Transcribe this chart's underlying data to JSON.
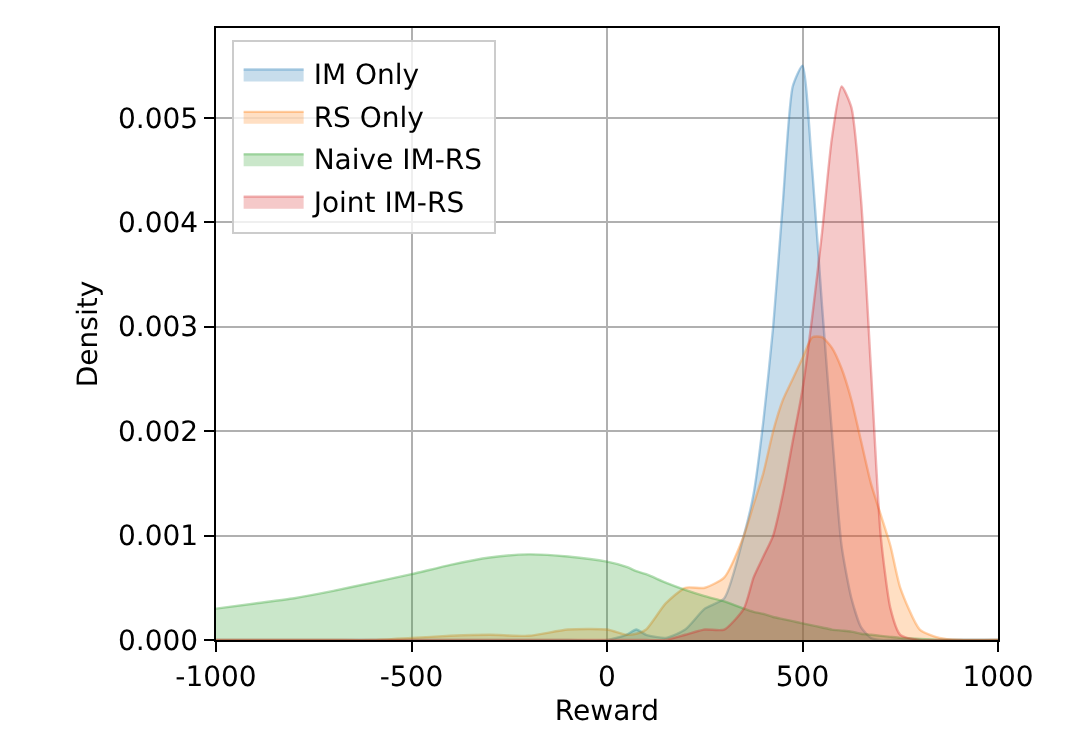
{
  "chart_data": {
    "type": "area",
    "xlabel": "Reward",
    "ylabel": "Density",
    "x": [
      -1000,
      -900,
      -800,
      -700,
      -600,
      -500,
      -400,
      -300,
      -200,
      -100,
      0,
      50,
      75,
      100,
      150,
      200,
      250,
      300,
      350,
      375,
      400,
      425,
      450,
      475,
      500,
      525,
      550,
      575,
      600,
      625,
      650,
      675,
      700,
      725,
      750,
      800,
      850,
      900,
      1000
    ],
    "series": [
      {
        "name": "IM Only",
        "color": "#1f77b4",
        "values": [
          0,
          0,
          0,
          0,
          0,
          0,
          0,
          0,
          0,
          0,
          0,
          5e-05,
          0.0001,
          5e-05,
          2e-05,
          0.0001,
          0.0003,
          0.0004,
          0.001,
          0.0014,
          0.0021,
          0.003,
          0.0042,
          0.0053,
          0.0055,
          0.0045,
          0.0032,
          0.002,
          0.0009,
          0.0004,
          0.00012,
          2e-05,
          0,
          0,
          0,
          0,
          0,
          0,
          0
        ]
      },
      {
        "name": "RS Only",
        "color": "#ff7f0e",
        "values": [
          0,
          0,
          0,
          0,
          0,
          2e-05,
          4e-05,
          5e-05,
          4e-05,
          0.0001,
          0.0001,
          5e-05,
          6e-05,
          0.0001,
          0.00035,
          0.0005,
          0.0005,
          0.0006,
          0.001,
          0.0013,
          0.0016,
          0.002,
          0.0023,
          0.0025,
          0.0027,
          0.0029,
          0.0029,
          0.0028,
          0.0026,
          0.0023,
          0.0019,
          0.0015,
          0.0012,
          0.0009,
          0.0005,
          0.0001,
          2e-05,
          0,
          0
        ]
      },
      {
        "name": "Naive IM-RS",
        "color": "#2ca02c",
        "values": [
          0.0003,
          0.00035,
          0.0004,
          0.00047,
          0.00055,
          0.00063,
          0.00072,
          0.00079,
          0.00082,
          0.0008,
          0.00075,
          0.0007,
          0.00066,
          0.00063,
          0.00055,
          0.00048,
          0.00042,
          0.00037,
          0.0003,
          0.00027,
          0.00025,
          0.00022,
          0.0002,
          0.00018,
          0.00016,
          0.00014,
          0.00012,
          0.0001,
          9e-05,
          8e-05,
          6e-05,
          5e-05,
          4e-05,
          3e-05,
          2e-05,
          1e-05,
          0,
          0,
          0
        ]
      },
      {
        "name": "Joint IM-RS",
        "color": "#d62728",
        "values": [
          0,
          0,
          0,
          0,
          0,
          0,
          0,
          0,
          0,
          0,
          0,
          0,
          0,
          0,
          0,
          5e-05,
          0.0001,
          0.0001,
          0.0003,
          0.0006,
          0.0008,
          0.001,
          0.0014,
          0.0019,
          0.0024,
          0.0031,
          0.0039,
          0.0048,
          0.0053,
          0.0051,
          0.0042,
          0.0026,
          0.001,
          0.0003,
          5e-05,
          0,
          0,
          0,
          0
        ]
      }
    ],
    "xlim": [
      -1000,
      1000
    ],
    "xticks": [
      -1000,
      -500,
      0,
      500,
      1000
    ],
    "ylim": [
      0,
      0.00586
    ],
    "yticks": [
      {
        "value": 0,
        "label": "0.000"
      },
      {
        "value": 0.001,
        "label": "0.001"
      },
      {
        "value": 0.002,
        "label": "0.002"
      },
      {
        "value": 0.003,
        "label": "0.003"
      },
      {
        "value": 0.004,
        "label": "0.004"
      },
      {
        "value": 0.005,
        "label": "0.005"
      }
    ],
    "grid": true,
    "legend": "top left"
  }
}
